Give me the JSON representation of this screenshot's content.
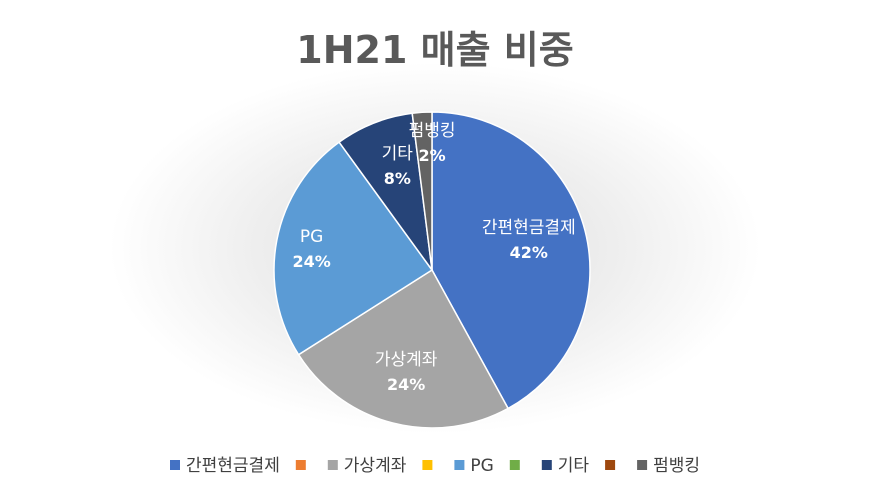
{
  "chart_data": {
    "type": "pie",
    "title": "1H21 매출 비중",
    "categories": [
      "간편현금결제",
      "",
      "가상계좌",
      "",
      "PG",
      "",
      "기타",
      "",
      "펌뱅킹"
    ],
    "values": [
      42,
      0,
      24,
      0,
      24,
      0,
      8,
      0,
      2
    ],
    "percent_labels": [
      "42%",
      "",
      "24%",
      "",
      "24%",
      "",
      "8%",
      "",
      "2%"
    ],
    "colors": [
      "#4472c4",
      "#ed7d31",
      "#a5a5a5",
      "#ffc000",
      "#5b9bd5",
      "#70ad47",
      "#264478",
      "#9e480e",
      "#636363"
    ],
    "legend_position": "bottom",
    "start": "top, clockwise",
    "shading": "radial gradient background"
  }
}
